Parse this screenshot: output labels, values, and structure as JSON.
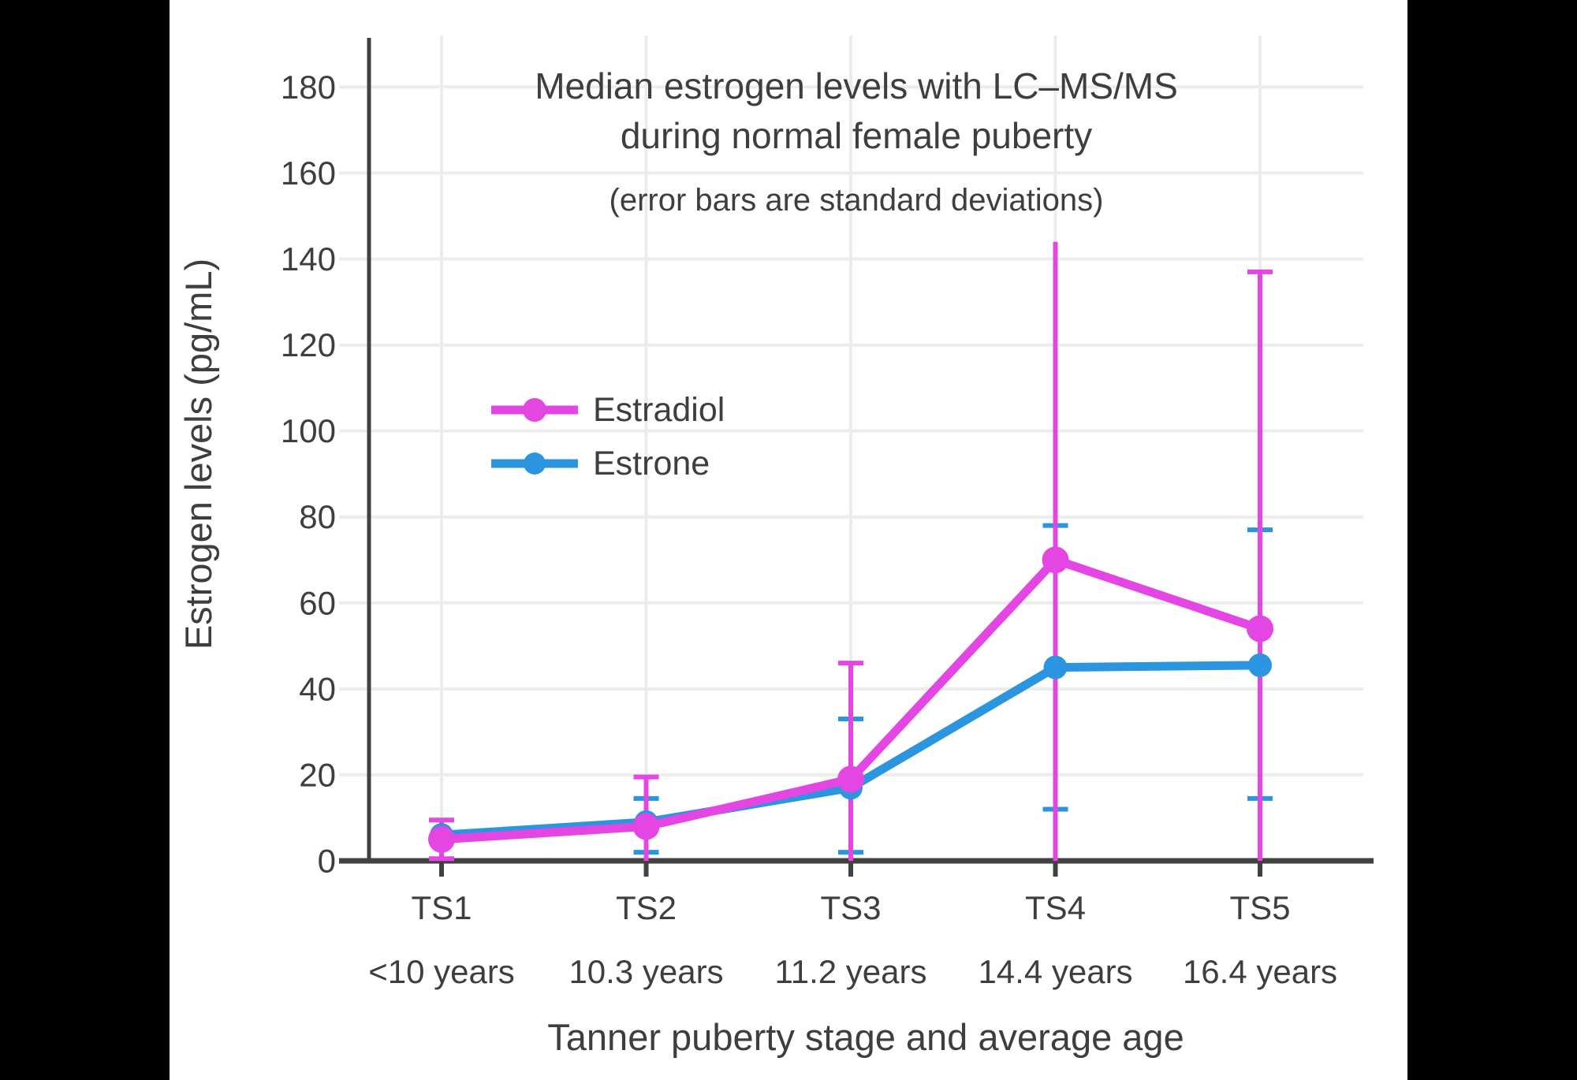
{
  "figure": {
    "title_line1": "Median estrogen levels with LC–MS/MS",
    "title_line2": "during normal female puberty",
    "subtitle": "(error bars are standard deviations)"
  },
  "colors": {
    "background": "#FFFFFF",
    "letterbox": "#000000",
    "grid": "#ECECEC",
    "axis": "#424242",
    "text": "#3E3E3E",
    "estradiol": "#E346E3",
    "estrone": "#2B95E0"
  },
  "chart_data": {
    "type": "line",
    "title": "Median estrogen levels with LC–MS/MS during normal female puberty",
    "subtitle": "(error bars are standard deviations)",
    "xlabel": "Tanner puberty stage and average age",
    "ylabel": "Estrogen levels (pg/mL)",
    "categories": [
      "TS1",
      "TS2",
      "TS3",
      "TS4",
      "TS5"
    ],
    "category_ages": [
      "<10 years",
      "10.3 years",
      "11.2 years",
      "14.4 years",
      "16.4 years"
    ],
    "y_ticks": [
      0,
      20,
      40,
      60,
      80,
      100,
      120,
      140,
      160,
      180
    ],
    "ylim": [
      0,
      190
    ],
    "grid": true,
    "legend_position": "inside-upper-left",
    "error_bar_meaning": "standard deviation",
    "series": [
      {
        "name": "Estradiol",
        "color": "#E346E3",
        "values": [
          5,
          8,
          19,
          70,
          54
        ],
        "error_high": [
          9.5,
          19.5,
          46,
          144,
          137
        ],
        "error_low": [
          0.5,
          0,
          0,
          0,
          0
        ],
        "cap_high": [
          true,
          true,
          true,
          false,
          true
        ],
        "cap_low": [
          true,
          false,
          false,
          false,
          false
        ]
      },
      {
        "name": "Estrone",
        "color": "#2B95E0",
        "values": [
          6,
          9,
          17,
          45,
          45.5
        ],
        "error_high": [
          null,
          14.5,
          33,
          78,
          77
        ],
        "error_low": [
          null,
          2,
          2,
          12,
          14.5
        ],
        "cap_high": [
          false,
          true,
          true,
          true,
          true
        ],
        "cap_low": [
          false,
          true,
          true,
          true,
          true
        ]
      }
    ]
  }
}
